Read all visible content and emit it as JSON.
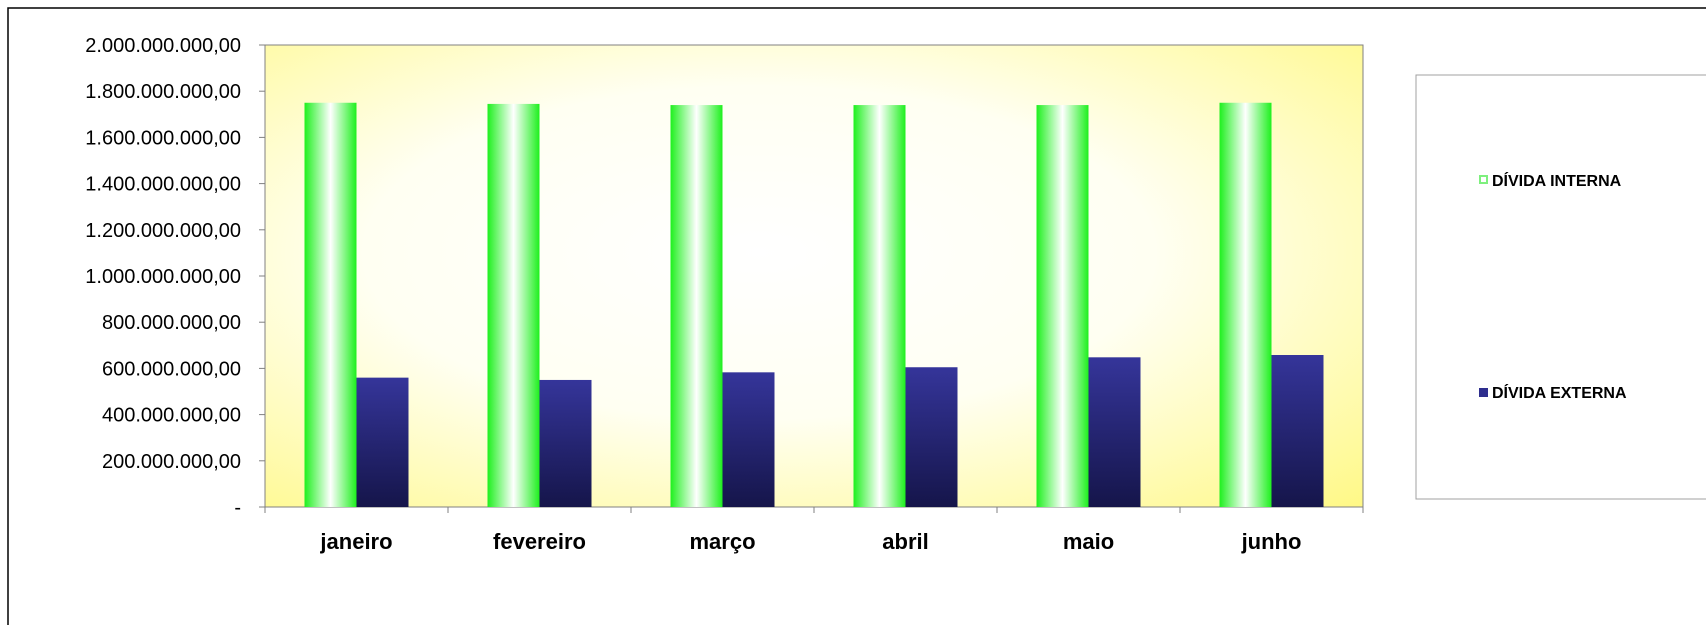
{
  "chart_data": {
    "type": "bar",
    "categories": [
      "janeiro",
      "fevereiro",
      "março",
      "abril",
      "maio",
      "junho"
    ],
    "series": [
      {
        "name": "DÍVIDA INTERNA",
        "values": [
          1750000000,
          1745000000,
          1740000000,
          1740000000,
          1740000000,
          1750000000
        ],
        "color": "#22ee22",
        "legend_marker_color": "#7ef07e"
      },
      {
        "name": "DÍVIDA EXTERNA",
        "values": [
          560000000,
          550000000,
          583000000,
          605000000,
          648000000,
          658000000
        ],
        "color": "#2e2e8e",
        "legend_marker_color": "#2e2e8e"
      }
    ],
    "ylim": [
      0,
      2000000000
    ],
    "yticks": [
      {
        "value": 0,
        "label": "-"
      },
      {
        "value": 200000000,
        "label": "200.000.000,00"
      },
      {
        "value": 400000000,
        "label": "400.000.000,00"
      },
      {
        "value": 600000000,
        "label": "600.000.000,00"
      },
      {
        "value": 800000000,
        "label": "800.000.000,00"
      },
      {
        "value": 1000000000,
        "label": "1.000.000.000,00"
      },
      {
        "value": 1200000000,
        "label": "1.200.000.000,00"
      },
      {
        "value": 1400000000,
        "label": "1.400.000.000,00"
      },
      {
        "value": 1600000000,
        "label": "1.600.000.000,00"
      },
      {
        "value": 1800000000,
        "label": "1.800.000.000,00"
      },
      {
        "value": 2000000000,
        "label": "2.000.000.000,00"
      }
    ],
    "grid": false,
    "legend_position": "right",
    "plot_background": "yellow radial gradient",
    "title": "",
    "xlabel": "",
    "ylabel": ""
  }
}
